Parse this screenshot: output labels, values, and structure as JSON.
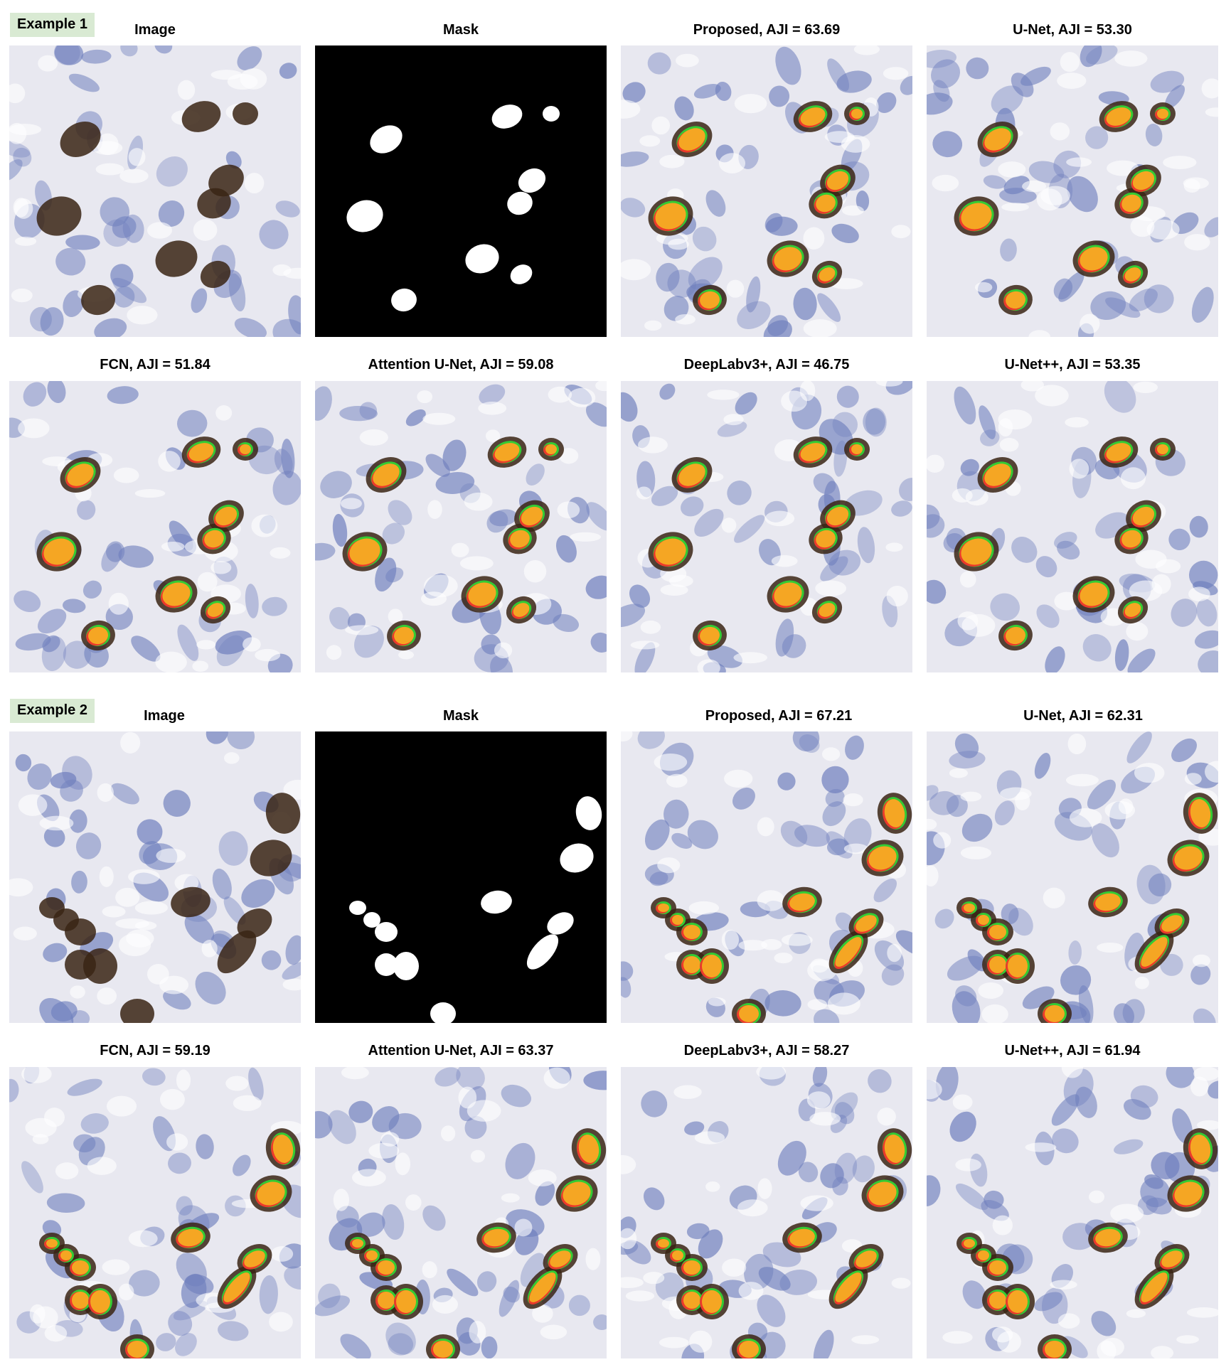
{
  "examples": [
    {
      "label": "Example 1",
      "titles": [
        "Image",
        "Mask",
        "Proposed, AJI = 63.69",
        "U-Net, AJI = 53.30",
        "FCN, AJI = 51.84",
        "Attention U-Net, AJI = 59.08",
        "DeepLabv3+, AJI = 46.75",
        "U-Net++, AJI = 53.35"
      ]
    },
    {
      "label": "Example 2",
      "titles": [
        "Image",
        "Mask",
        "Proposed, AJI = 67.21",
        "U-Net, AJI = 62.31",
        "FCN, AJI = 59.19",
        "Attention U-Net, AJI = 63.37",
        "DeepLabv3+, AJI = 58.27",
        "U-Net++, AJI = 61.94"
      ]
    }
  ],
  "legend_colors": {
    "true_positive_overlap": "#f5a623",
    "ground_truth_only": "#33cc33",
    "prediction_only": "#ff2a2a",
    "mask_foreground": "#ffffff",
    "mask_background": "#000000",
    "tissue_background": "#e8e8f0",
    "hematoxylin_nucleus": "#6f7fbd",
    "dab_stain": "#3a2414"
  }
}
